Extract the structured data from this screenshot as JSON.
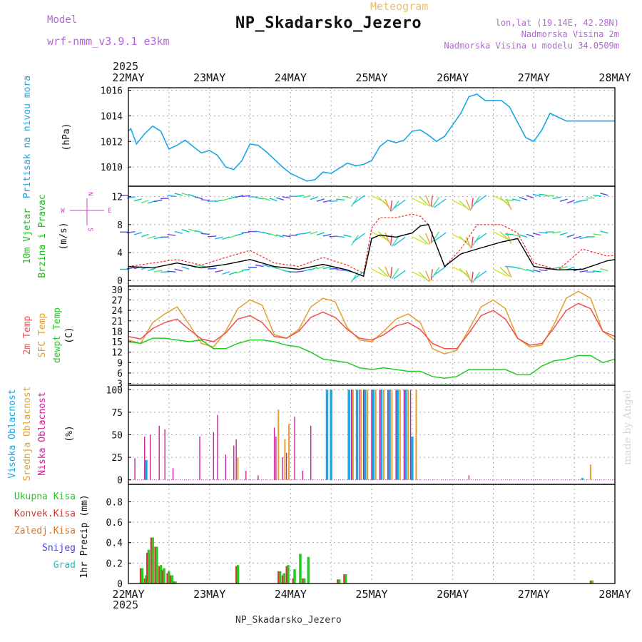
{
  "header": {
    "model_label": "Model",
    "model_name": "wrf-nmm_v3.9.1 e3km",
    "meteogram_label": "Meteogram",
    "station": "NP_Skadarsko_Jezero",
    "lonlat": "lon,lat (19.14E, 42.28N)",
    "elevation": "Nadmorska Visina 2m",
    "model_elevation": "Nadmorska Visina u modelu 34.0509m",
    "footer_station": "NP_Skadarsko_Jezero",
    "credit": "made by Angel",
    "year_top": "2025",
    "year_bottom": "2025"
  },
  "colors": {
    "pressure": "#1aa7e6",
    "temp": "#f05050",
    "sfc": "#e0a030",
    "dew": "#22cc22",
    "cloud_high": "#1aa7e6",
    "cloud_mid": "#e0a030",
    "cloud_low": "#cc2299",
    "precip_total": "#22cc22",
    "precip_conv": "#e03030",
    "precip_frz": "#e07020",
    "snow": "#4444dd",
    "hail": "#22bbbb",
    "wind_legend": "#cc44cc"
  },
  "chart_data": [
    {
      "type": "line",
      "name": "pressure",
      "title": "Pritisak na nivou mora",
      "ylabel": "(hPa)",
      "ylim": [
        1008.5,
        1016.2
      ],
      "yticks": [
        "1010",
        "1012",
        "1014",
        "1016"
      ],
      "xticks": [
        "22MAY",
        "23MAY",
        "24MAY",
        "25MAY",
        "26MAY",
        "27MAY",
        "28MAY"
      ],
      "grid": true,
      "x_days": [
        0,
        0.03,
        0.1,
        0.2,
        0.3,
        0.4,
        0.5,
        0.6,
        0.7,
        0.8,
        0.9,
        1.0,
        1.1,
        1.2,
        1.3,
        1.4,
        1.5,
        1.6,
        1.7,
        1.8,
        1.9,
        2.0,
        2.1,
        2.2,
        2.3,
        2.4,
        2.5,
        2.6,
        2.7,
        2.8,
        2.9,
        3.0,
        3.1,
        3.2,
        3.3,
        3.4,
        3.5,
        3.6,
        3.7,
        3.8,
        3.9,
        4.0,
        4.1,
        4.2,
        4.3,
        4.4,
        4.5,
        4.6,
        4.7,
        4.8,
        4.9,
        5.0,
        5.1,
        5.2,
        5.3,
        5.4,
        5.5,
        5.6,
        5.7,
        5.8,
        5.9,
        6.0
      ],
      "series": [
        {
          "name": "Pritisak",
          "values": [
            1012.8,
            1013.0,
            1011.8,
            1012.6,
            1013.2,
            1012.8,
            1011.4,
            1011.7,
            1012.1,
            1011.6,
            1011.1,
            1011.3,
            1010.9,
            1010.0,
            1009.8,
            1010.5,
            1011.8,
            1011.7,
            1011.2,
            1010.6,
            1010.0,
            1009.5,
            1009.2,
            1008.9,
            1009.0,
            1009.6,
            1009.5,
            1009.9,
            1010.3,
            1010.1,
            1010.2,
            1010.5,
            1011.6,
            1012.1,
            1011.9,
            1012.1,
            1012.8,
            1012.9,
            1012.5,
            1012.0,
            1012.4,
            1013.3,
            1014.2,
            1015.5,
            1015.7,
            1015.2,
            1015.2,
            1015.2,
            1014.7,
            1013.5,
            1012.3,
            1012.0,
            1012.9,
            1014.2,
            1013.9,
            1013.6,
            1013.6,
            1013.6,
            1013.6,
            1013.6,
            1013.6,
            1013.6
          ]
        }
      ]
    },
    {
      "type": "line",
      "name": "wind",
      "title_line1": "10m Vjetar",
      "title_line2": "Brzina i Pravac",
      "ylabel": "(m/s)",
      "ylim": [
        -0.8,
        13.5
      ],
      "yticks": [
        "0",
        "4",
        "8",
        "12"
      ],
      "grid": true,
      "legend_compass": [
        "N",
        "S",
        "W",
        "E"
      ],
      "x_days": [
        0,
        0.3,
        0.6,
        0.9,
        1.2,
        1.5,
        1.8,
        2.1,
        2.4,
        2.7,
        2.9,
        3.0,
        3.1,
        3.3,
        3.5,
        3.6,
        3.7,
        3.9,
        4.1,
        4.3,
        4.6,
        4.8,
        5.0,
        5.3,
        5.6,
        5.9,
        6.0
      ],
      "series": [
        {
          "name": "Brzina (vjetar)",
          "values": [
            2.0,
            1.8,
            2.5,
            1.8,
            2.3,
            3.0,
            2.0,
            1.6,
            2.3,
            1.5,
            0.6,
            6.0,
            6.5,
            6.2,
            6.8,
            7.8,
            8.0,
            2.0,
            3.8,
            4.5,
            5.5,
            6.0,
            2.0,
            1.5,
            1.6,
            2.8,
            3.0
          ]
        },
        {
          "name": "Udari",
          "values": [
            2.0,
            2.5,
            3.0,
            2.2,
            3.3,
            4.3,
            2.5,
            2.0,
            3.3,
            2.2,
            1.0,
            7.5,
            9.0,
            9.0,
            9.5,
            9.2,
            8.0,
            2.0,
            4.5,
            8.0,
            8.0,
            6.8,
            2.5,
            1.5,
            4.5,
            3.5,
            3.6
          ]
        }
      ]
    },
    {
      "type": "line",
      "name": "temperature",
      "title_1": "2m Temp",
      "title_2": "SFC Temp",
      "title_3": "dewpt Temp",
      "ylabel": "(C)",
      "ylim": [
        2.5,
        31
      ],
      "yticks": [
        "3",
        "6",
        "9",
        "12",
        "15",
        "18",
        "21",
        "24",
        "27",
        "30"
      ],
      "grid": true,
      "x_days": [
        0,
        0.15,
        0.3,
        0.45,
        0.6,
        0.75,
        0.9,
        1.05,
        1.2,
        1.35,
        1.5,
        1.65,
        1.8,
        1.95,
        2.1,
        2.25,
        2.4,
        2.55,
        2.7,
        2.85,
        3.0,
        3.15,
        3.3,
        3.45,
        3.6,
        3.75,
        3.9,
        4.05,
        4.2,
        4.35,
        4.5,
        4.65,
        4.8,
        4.95,
        5.1,
        5.25,
        5.4,
        5.55,
        5.7,
        5.85,
        6.0
      ],
      "series": [
        {
          "name": "2m Temp",
          "values": [
            16.5,
            15.8,
            18.8,
            20.5,
            21.5,
            18.5,
            15.8,
            15.0,
            17.5,
            21.5,
            22.5,
            20.5,
            16.5,
            16.0,
            18.0,
            22.0,
            23.5,
            22.0,
            18.5,
            16.0,
            15.5,
            17.0,
            19.5,
            20.5,
            18.5,
            14.5,
            13.0,
            13.0,
            17.5,
            22.5,
            24.0,
            21.5,
            16.0,
            14.0,
            14.5,
            19.0,
            24.0,
            26.0,
            24.5,
            18.0,
            16.5
          ]
        },
        {
          "name": "SFC Temp",
          "values": [
            15.5,
            14.5,
            20.5,
            23.0,
            25.0,
            20.0,
            14.5,
            13.5,
            18.0,
            24.5,
            27.0,
            25.5,
            17.0,
            16.0,
            18.5,
            25.0,
            27.5,
            26.5,
            19.0,
            15.5,
            15.0,
            18.0,
            21.5,
            23.0,
            20.5,
            13.0,
            11.5,
            12.5,
            18.5,
            25.0,
            27.0,
            24.5,
            16.0,
            13.5,
            14.0,
            20.0,
            27.5,
            29.5,
            27.5,
            18.0,
            15.5
          ]
        },
        {
          "name": "dewpt Temp",
          "values": [
            15.0,
            14.5,
            16.0,
            16.0,
            15.5,
            15.0,
            15.5,
            13.0,
            13.0,
            14.5,
            15.5,
            15.5,
            15.0,
            14.0,
            13.5,
            12.0,
            10.0,
            9.5,
            9.0,
            7.5,
            7.0,
            7.5,
            7.0,
            6.5,
            6.5,
            5.0,
            4.5,
            5.0,
            7.0,
            7.0,
            7.0,
            7.0,
            5.5,
            5.5,
            8.0,
            9.5,
            10.0,
            11.0,
            11.0,
            9.0,
            10.0
          ]
        }
      ]
    },
    {
      "type": "bar",
      "name": "clouds",
      "title_1": "Visoka Oblacnost",
      "title_2": "Srednja Oblacnost",
      "title_3": "Niska Oblacnost",
      "ylabel": "(%)",
      "ylim": [
        -5,
        105
      ],
      "yticks": [
        "0",
        "25",
        "50",
        "75",
        "100"
      ],
      "grid": true,
      "bars_high": [
        [
          0.22,
          22
        ],
        [
          2.45,
          100
        ],
        [
          2.5,
          100
        ],
        [
          2.72,
          100
        ],
        [
          2.76,
          100
        ],
        [
          2.82,
          100
        ],
        [
          2.92,
          100
        ],
        [
          3.02,
          100
        ],
        [
          3.12,
          100
        ],
        [
          3.22,
          100
        ],
        [
          3.32,
          100
        ],
        [
          3.42,
          100
        ],
        [
          3.5,
          48
        ],
        [
          5.6,
          2
        ]
      ],
      "bars_mid": [
        [
          1.35,
          25
        ],
        [
          1.85,
          78
        ],
        [
          1.93,
          45
        ],
        [
          1.98,
          62
        ],
        [
          2.77,
          100
        ],
        [
          2.87,
          100
        ],
        [
          2.95,
          100
        ],
        [
          3.05,
          100
        ],
        [
          3.15,
          100
        ],
        [
          3.25,
          100
        ],
        [
          3.35,
          100
        ],
        [
          3.45,
          100
        ],
        [
          3.55,
          100
        ],
        [
          5.7,
          17
        ]
      ],
      "bars_low": [
        [
          0.08,
          24
        ],
        [
          0.2,
          48
        ],
        [
          0.27,
          50
        ],
        [
          0.38,
          60
        ],
        [
          0.45,
          56
        ],
        [
          0.55,
          13
        ],
        [
          0.88,
          48
        ],
        [
          1.05,
          53
        ],
        [
          1.1,
          72
        ],
        [
          1.2,
          28
        ],
        [
          1.3,
          38
        ],
        [
          1.33,
          45
        ],
        [
          1.45,
          10
        ],
        [
          1.6,
          5
        ],
        [
          1.8,
          58
        ],
        [
          1.82,
          48
        ],
        [
          1.9,
          25
        ],
        [
          1.95,
          30
        ],
        [
          2.05,
          70
        ],
        [
          2.15,
          10
        ],
        [
          2.25,
          60
        ],
        [
          2.75,
          100
        ],
        [
          2.85,
          100
        ],
        [
          2.9,
          100
        ],
        [
          3.0,
          100
        ],
        [
          3.1,
          100
        ],
        [
          3.2,
          100
        ],
        [
          3.3,
          100
        ],
        [
          3.4,
          100
        ],
        [
          3.48,
          100
        ],
        [
          4.2,
          5
        ]
      ]
    },
    {
      "type": "bar",
      "name": "precipitation",
      "legend": [
        "Ukupna Kisa",
        "Konvek.Kisa",
        "Zaledj.Kisa",
        "Snijeg",
        "Grad"
      ],
      "ylabel": "1hr Precip (mm)",
      "ylim": [
        0,
        0.97
      ],
      "yticks": [
        "0",
        "0.2",
        "0.4",
        "0.6",
        "0.8"
      ],
      "xticks": [
        "22MAY",
        "23MAY",
        "24MAY",
        "25MAY",
        "26MAY",
        "27MAY",
        "28MAY"
      ],
      "grid": true,
      "bars": [
        [
          0.17,
          0.15,
          0.15
        ],
        [
          0.22,
          0.08,
          0.05
        ],
        [
          0.25,
          0.33,
          0.3
        ],
        [
          0.3,
          0.45,
          0.45
        ],
        [
          0.35,
          0.36,
          0.36
        ],
        [
          0.4,
          0.18,
          0.17
        ],
        [
          0.44,
          0.15,
          0.13
        ],
        [
          0.5,
          0.12,
          0.1
        ],
        [
          0.54,
          0.08,
          0.08
        ],
        [
          0.58,
          0.02,
          0.02
        ],
        [
          1.35,
          0.18,
          0.17
        ],
        [
          1.87,
          0.12,
          0.12
        ],
        [
          1.92,
          0.1,
          0.08
        ],
        [
          1.97,
          0.18,
          0.17
        ],
        [
          2.05,
          0.14,
          0.05
        ],
        [
          2.12,
          0.29,
          0.0
        ],
        [
          2.17,
          0.05,
          0.05
        ],
        [
          2.22,
          0.26,
          0.0
        ],
        [
          2.6,
          0.04,
          0.04
        ],
        [
          2.68,
          0.09,
          0.09
        ],
        [
          5.72,
          0.03,
          0.03
        ]
      ]
    }
  ]
}
